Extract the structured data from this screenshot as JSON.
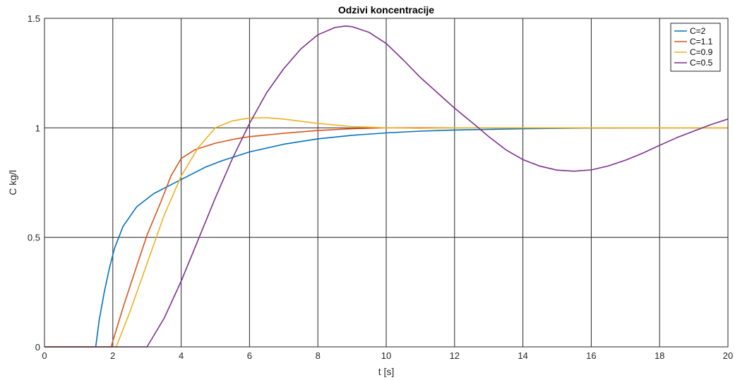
{
  "chart_data": {
    "type": "line",
    "title": "Odzivi koncentracije",
    "xlabel": "t [s]",
    "ylabel": "C kg/l",
    "xlim": [
      0,
      20
    ],
    "ylim": [
      0,
      1.5
    ],
    "xticks": [
      "0",
      "2",
      "4",
      "6",
      "8",
      "10",
      "12",
      "14",
      "16",
      "18",
      "20"
    ],
    "yticks": [
      "0",
      "0.5",
      "1",
      "1.5"
    ],
    "grid": true,
    "legend_position": "top-right",
    "series": [
      {
        "name": "C=2",
        "color": "#0072BD",
        "points": [
          [
            0,
            0
          ],
          [
            1.5,
            0
          ],
          [
            1.6,
            0.12
          ],
          [
            1.75,
            0.25
          ],
          [
            1.9,
            0.36
          ],
          [
            2.05,
            0.45
          ],
          [
            2.3,
            0.55
          ],
          [
            2.7,
            0.64
          ],
          [
            3.2,
            0.7
          ],
          [
            3.7,
            0.74
          ],
          [
            4.2,
            0.78
          ],
          [
            4.7,
            0.82
          ],
          [
            5.2,
            0.85
          ],
          [
            6,
            0.89
          ],
          [
            7,
            0.925
          ],
          [
            8,
            0.95
          ],
          [
            9,
            0.966
          ],
          [
            10,
            0.977
          ],
          [
            11,
            0.985
          ],
          [
            12,
            0.99
          ],
          [
            14,
            0.996
          ],
          [
            16,
            0.999
          ],
          [
            18,
            1.0
          ],
          [
            20,
            1.0
          ]
        ]
      },
      {
        "name": "C=1.1",
        "color": "#D95319",
        "points": [
          [
            0,
            0
          ],
          [
            1.95,
            0
          ],
          [
            2.3,
            0.18
          ],
          [
            2.7,
            0.37
          ],
          [
            3.0,
            0.51
          ],
          [
            3.4,
            0.66
          ],
          [
            3.7,
            0.78
          ],
          [
            4.0,
            0.86
          ],
          [
            4.4,
            0.9
          ],
          [
            5,
            0.93
          ],
          [
            5.6,
            0.95
          ],
          [
            6,
            0.96
          ],
          [
            7,
            0.975
          ],
          [
            8,
            0.988
          ],
          [
            9,
            0.996
          ],
          [
            10,
            1.0
          ],
          [
            12,
            1.0
          ],
          [
            14,
            1.0
          ],
          [
            20,
            1.0
          ]
        ]
      },
      {
        "name": "C=0.9",
        "color": "#EDB120",
        "points": [
          [
            0,
            0
          ],
          [
            2.1,
            0
          ],
          [
            2.5,
            0.16
          ],
          [
            3.0,
            0.38
          ],
          [
            3.5,
            0.6
          ],
          [
            4.0,
            0.78
          ],
          [
            4.5,
            0.91
          ],
          [
            5.0,
            1.0
          ],
          [
            5.5,
            1.032
          ],
          [
            6,
            1.045
          ],
          [
            6.5,
            1.046
          ],
          [
            7,
            1.04
          ],
          [
            8,
            1.02
          ],
          [
            9,
            1.006
          ],
          [
            10,
            1.0
          ],
          [
            11,
            0.998
          ],
          [
            12,
            1.0
          ],
          [
            20,
            1.0
          ]
        ]
      },
      {
        "name": "C=0.5",
        "color": "#7E2F8E",
        "points": [
          [
            0,
            0
          ],
          [
            3.0,
            0
          ],
          [
            3.5,
            0.13
          ],
          [
            4,
            0.3
          ],
          [
            4.5,
            0.49
          ],
          [
            5,
            0.68
          ],
          [
            5.5,
            0.86
          ],
          [
            6,
            1.02
          ],
          [
            6.5,
            1.16
          ],
          [
            7,
            1.27
          ],
          [
            7.5,
            1.36
          ],
          [
            8,
            1.425
          ],
          [
            8.5,
            1.458
          ],
          [
            8.8,
            1.465
          ],
          [
            9,
            1.462
          ],
          [
            9.5,
            1.436
          ],
          [
            10,
            1.385
          ],
          [
            10.5,
            1.31
          ],
          [
            11,
            1.23
          ],
          [
            11.5,
            1.16
          ],
          [
            12,
            1.09
          ],
          [
            12.7,
            1.0
          ],
          [
            13,
            0.96
          ],
          [
            13.5,
            0.9
          ],
          [
            14,
            0.855
          ],
          [
            14.5,
            0.825
          ],
          [
            15,
            0.807
          ],
          [
            15.5,
            0.802
          ],
          [
            16,
            0.808
          ],
          [
            16.5,
            0.826
          ],
          [
            17,
            0.852
          ],
          [
            17.5,
            0.884
          ],
          [
            18,
            0.92
          ],
          [
            18.5,
            0.955
          ],
          [
            19,
            0.985
          ],
          [
            19.5,
            1.015
          ],
          [
            20,
            1.04
          ]
        ]
      }
    ]
  }
}
